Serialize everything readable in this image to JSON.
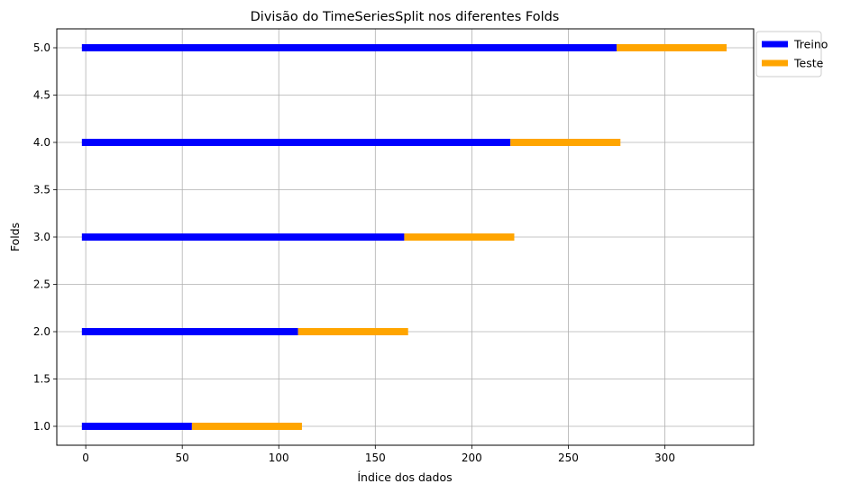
{
  "chart_data": {
    "type": "bar",
    "orientation": "horizontal-segments",
    "title": "Divisão do TimeSeriesSplit nos diferentes Folds",
    "xlabel": "Índice dos dados",
    "ylabel": "Folds",
    "xlim": [
      -15,
      346
    ],
    "ylim": [
      0.8,
      5.2
    ],
    "xticks": [
      0,
      50,
      100,
      150,
      200,
      250,
      300
    ],
    "yticks": [
      1.0,
      1.5,
      2.0,
      2.5,
      3.0,
      3.5,
      4.0,
      4.5,
      5.0
    ],
    "grid": true,
    "legend_position": "outside-top-right",
    "series": [
      {
        "name": "Treino",
        "color": "#0000ff",
        "segments": [
          {
            "fold": 1,
            "start": -2,
            "end": 55
          },
          {
            "fold": 2,
            "start": -2,
            "end": 110
          },
          {
            "fold": 3,
            "start": -2,
            "end": 165
          },
          {
            "fold": 4,
            "start": -2,
            "end": 220
          },
          {
            "fold": 5,
            "start": -2,
            "end": 275
          }
        ]
      },
      {
        "name": "Teste",
        "color": "#ffa500",
        "segments": [
          {
            "fold": 1,
            "start": 55,
            "end": 112
          },
          {
            "fold": 2,
            "start": 110,
            "end": 167
          },
          {
            "fold": 3,
            "start": 165,
            "end": 222
          },
          {
            "fold": 4,
            "start": 220,
            "end": 277
          },
          {
            "fold": 5,
            "start": 275,
            "end": 332
          }
        ]
      }
    ]
  }
}
